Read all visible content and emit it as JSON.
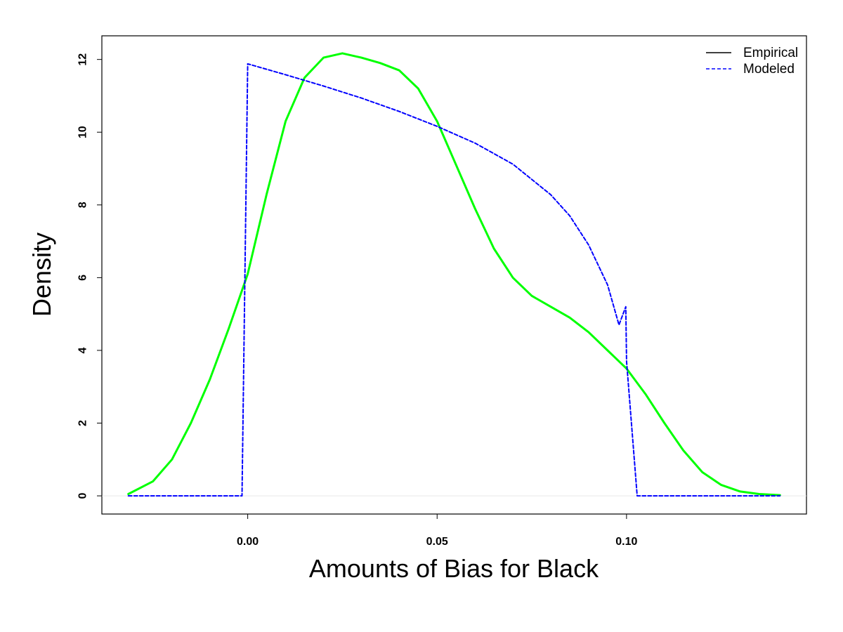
{
  "chart_data": {
    "type": "line",
    "title": "",
    "xlabel": "Amounts of Bias for Black",
    "ylabel": "Density",
    "xlim": [
      -0.0385,
      0.1475
    ],
    "ylim": [
      -0.5,
      12.65
    ],
    "x_ticks": [
      0.0,
      0.05,
      0.1
    ],
    "x_tick_labels": [
      "0.00",
      "0.05",
      "0.10"
    ],
    "y_ticks": [
      0,
      2,
      4,
      6,
      8,
      10,
      12
    ],
    "y_tick_labels": [
      "0",
      "2",
      "4",
      "6",
      "8",
      "10",
      "12"
    ],
    "grid": false,
    "baseline": 0,
    "legend": {
      "position": "top-right",
      "entries": [
        {
          "label": "Empirical",
          "color": "#000000",
          "dash": "solid"
        },
        {
          "label": "Modeled",
          "color": "#0000ff",
          "dash": "dashed"
        }
      ]
    },
    "series": [
      {
        "legend_label": "Empirical",
        "color": "#00ff00",
        "dash": "solid",
        "x": [
          -0.0315,
          -0.025,
          -0.02,
          -0.015,
          -0.01,
          -0.005,
          0.0,
          0.005,
          0.01,
          0.015,
          0.02,
          0.025,
          0.03,
          0.035,
          0.04,
          0.045,
          0.05,
          0.055,
          0.06,
          0.065,
          0.07,
          0.075,
          0.08,
          0.085,
          0.09,
          0.095,
          0.1,
          0.105,
          0.11,
          0.115,
          0.12,
          0.125,
          0.13,
          0.135,
          0.1405
        ],
        "y": [
          0.05,
          0.4,
          1.0,
          2.0,
          3.2,
          4.6,
          6.1,
          8.3,
          10.3,
          11.5,
          12.05,
          12.17,
          12.05,
          11.9,
          11.7,
          11.2,
          10.3,
          9.1,
          7.9,
          6.8,
          6.0,
          5.5,
          5.2,
          4.9,
          4.5,
          4.0,
          3.5,
          2.8,
          2.0,
          1.25,
          0.65,
          0.3,
          0.12,
          0.05,
          0.02
        ]
      },
      {
        "legend_label": "Modeled",
        "color": "#0000ff",
        "dash": "dashed",
        "x": [
          -0.0315,
          -0.0015,
          0.0,
          0.01,
          0.02,
          0.03,
          0.04,
          0.05,
          0.06,
          0.07,
          0.08,
          0.085,
          0.09,
          0.095,
          0.098,
          0.0998,
          0.1,
          0.1028,
          0.1405
        ],
        "y": [
          0.0,
          0.0,
          11.88,
          11.58,
          11.27,
          10.94,
          10.57,
          10.16,
          9.7,
          9.12,
          8.28,
          7.7,
          6.9,
          5.8,
          4.7,
          5.2,
          3.7,
          0.0,
          0.0
        ]
      }
    ]
  }
}
